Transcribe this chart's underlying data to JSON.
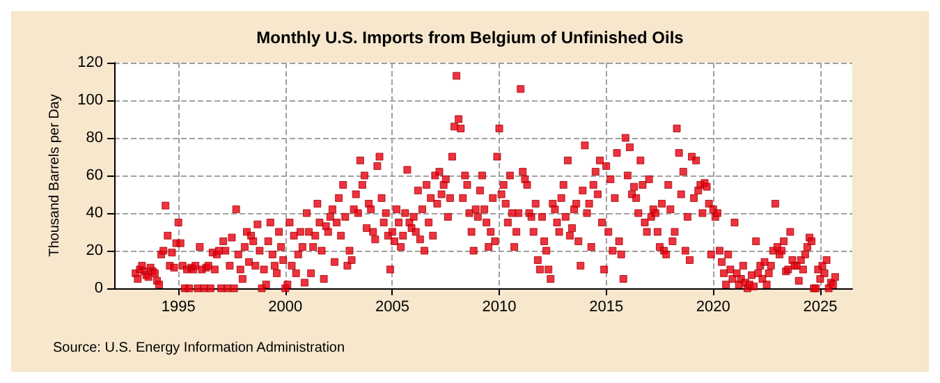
{
  "chart_data": {
    "type": "scatter",
    "title": "Monthly U.S. Imports from Belgium of Unfinished Oils",
    "ylabel": "Thousand Barrels per Day",
    "annotations": [
      "Source: U.S. Energy Information Administration"
    ],
    "x": [
      1993.0,
      1993.1,
      1993.2,
      1993.3,
      1993.4,
      1993.5,
      1993.6,
      1993.7,
      1993.8,
      1993.9,
      1994.0,
      1994.1,
      1994.2,
      1994.3,
      1994.4,
      1994.5,
      1994.6,
      1994.7,
      1994.8,
      1994.9,
      1995.0,
      1995.1,
      1995.2,
      1995.3,
      1995.4,
      1995.5,
      1995.6,
      1995.7,
      1995.8,
      1995.9,
      1996.0,
      1996.1,
      1996.2,
      1996.3,
      1996.4,
      1996.5,
      1996.6,
      1996.7,
      1996.8,
      1996.9,
      1997.0,
      1997.1,
      1997.2,
      1997.3,
      1997.4,
      1997.5,
      1997.6,
      1997.7,
      1997.8,
      1997.9,
      1998.0,
      1998.1,
      1998.2,
      1998.3,
      1998.4,
      1998.5,
      1998.6,
      1998.7,
      1998.8,
      1998.9,
      1999.0,
      1999.1,
      1999.2,
      1999.3,
      1999.4,
      1999.5,
      1999.6,
      1999.7,
      1999.8,
      1999.9,
      2000.0,
      2000.1,
      2000.2,
      2000.3,
      2000.4,
      2000.5,
      2000.6,
      2000.7,
      2000.8,
      2000.9,
      2001.0,
      2001.1,
      2001.2,
      2001.3,
      2001.4,
      2001.5,
      2001.6,
      2001.7,
      2001.8,
      2001.9,
      2002.0,
      2002.1,
      2002.2,
      2002.3,
      2002.4,
      2002.5,
      2002.6,
      2002.7,
      2002.8,
      2002.9,
      2003.0,
      2003.1,
      2003.2,
      2003.3,
      2003.4,
      2003.5,
      2003.6,
      2003.7,
      2003.8,
      2003.9,
      2004.0,
      2004.1,
      2004.2,
      2004.3,
      2004.4,
      2004.5,
      2004.6,
      2004.7,
      2004.8,
      2004.9,
      2005.0,
      2005.1,
      2005.2,
      2005.3,
      2005.4,
      2005.5,
      2005.6,
      2005.7,
      2005.8,
      2005.9,
      2006.0,
      2006.1,
      2006.2,
      2006.3,
      2006.4,
      2006.5,
      2006.6,
      2006.7,
      2006.8,
      2006.9,
      2007.0,
      2007.1,
      2007.2,
      2007.3,
      2007.4,
      2007.5,
      2007.6,
      2007.7,
      2007.8,
      2007.9,
      2008.0,
      2008.1,
      2008.2,
      2008.3,
      2008.4,
      2008.5,
      2008.6,
      2008.7,
      2008.8,
      2008.9,
      2009.0,
      2009.1,
      2009.2,
      2009.3,
      2009.4,
      2009.5,
      2009.6,
      2009.7,
      2009.8,
      2009.9,
      2010.0,
      2010.1,
      2010.2,
      2010.3,
      2010.4,
      2010.5,
      2010.6,
      2010.7,
      2010.8,
      2010.9,
      2011.0,
      2011.1,
      2011.2,
      2011.3,
      2011.4,
      2011.5,
      2011.6,
      2011.7,
      2011.8,
      2011.9,
      2012.0,
      2012.1,
      2012.2,
      2012.3,
      2012.4,
      2012.5,
      2012.6,
      2012.7,
      2012.8,
      2012.9,
      2013.0,
      2013.1,
      2013.2,
      2013.3,
      2013.4,
      2013.5,
      2013.6,
      2013.7,
      2013.8,
      2013.9,
      2014.0,
      2014.1,
      2014.2,
      2014.3,
      2014.4,
      2014.5,
      2014.6,
      2014.7,
      2014.8,
      2014.9,
      2015.0,
      2015.1,
      2015.2,
      2015.3,
      2015.4,
      2015.5,
      2015.6,
      2015.7,
      2015.8,
      2015.9,
      2016.0,
      2016.1,
      2016.2,
      2016.3,
      2016.4,
      2016.5,
      2016.6,
      2016.7,
      2016.8,
      2016.9,
      2017.0,
      2017.1,
      2017.2,
      2017.3,
      2017.4,
      2017.5,
      2017.6,
      2017.7,
      2017.8,
      2017.9,
      2018.0,
      2018.1,
      2018.2,
      2018.3,
      2018.4,
      2018.5,
      2018.6,
      2018.7,
      2018.8,
      2018.9,
      2019.0,
      2019.1,
      2019.2,
      2019.3,
      2019.4,
      2019.5,
      2019.6,
      2019.7,
      2019.8,
      2019.9,
      2020.0,
      2020.1,
      2020.2,
      2020.3,
      2020.4,
      2020.5,
      2020.6,
      2020.7,
      2020.8,
      2020.9,
      2021.0,
      2021.1,
      2021.2,
      2021.3,
      2021.4,
      2021.5,
      2021.6,
      2021.7,
      2021.8,
      2021.9,
      2022.0,
      2022.1,
      2022.2,
      2022.3,
      2022.4,
      2022.5,
      2022.6,
      2022.7,
      2022.8,
      2022.9,
      2023.0,
      2023.1,
      2023.2,
      2023.3,
      2023.4,
      2023.5,
      2023.6,
      2023.7,
      2023.8,
      2023.9,
      2024.0,
      2024.1,
      2024.2,
      2024.3,
      2024.4,
      2024.5,
      2024.6,
      2024.7,
      2024.8,
      2024.9,
      2025.0,
      2025.1,
      2025.2,
      2025.3,
      2025.4,
      2025.5,
      2025.6,
      2025.7
    ],
    "values": [
      8,
      5,
      10,
      12,
      9,
      7,
      6,
      11,
      9,
      8,
      4,
      2,
      18,
      20,
      44,
      28,
      12,
      19,
      11,
      24,
      35,
      24,
      12,
      0,
      10,
      0,
      11,
      10,
      12,
      0,
      22,
      10,
      0,
      11,
      12,
      0,
      19,
      10,
      18,
      20,
      0,
      25,
      20,
      0,
      12,
      27,
      0,
      42,
      18,
      10,
      5,
      22,
      30,
      14,
      28,
      25,
      12,
      34,
      20,
      0,
      10,
      2,
      25,
      35,
      18,
      12,
      8,
      30,
      22,
      15,
      0,
      2,
      35,
      12,
      28,
      8,
      18,
      30,
      22,
      3,
      40,
      30,
      8,
      22,
      28,
      45,
      35,
      20,
      5,
      33,
      30,
      38,
      42,
      14,
      35,
      48,
      28,
      55,
      38,
      12,
      20,
      15,
      42,
      50,
      40,
      68,
      55,
      60,
      32,
      45,
      42,
      30,
      26,
      65,
      70,
      48,
      35,
      40,
      28,
      10,
      30,
      25,
      42,
      35,
      22,
      28,
      40,
      63,
      35,
      32,
      38,
      30,
      52,
      26,
      42,
      20,
      55,
      35,
      48,
      28,
      60,
      45,
      62,
      50,
      55,
      58,
      38,
      48,
      70,
      86,
      113,
      90,
      85,
      48,
      60,
      55,
      40,
      30,
      20,
      42,
      38,
      52,
      60,
      42,
      35,
      22,
      30,
      48,
      25,
      70,
      85,
      50,
      55,
      45,
      35,
      60,
      40,
      22,
      30,
      40,
      106,
      62,
      58,
      55,
      40,
      38,
      30,
      45,
      15,
      10,
      38,
      25,
      20,
      10,
      5,
      45,
      42,
      35,
      30,
      48,
      55,
      38,
      68,
      28,
      32,
      42,
      45,
      25,
      12,
      52,
      76,
      40,
      45,
      22,
      55,
      62,
      50,
      68,
      35,
      10,
      65,
      30,
      58,
      20,
      48,
      72,
      25,
      18,
      5,
      80,
      60,
      75,
      50,
      54,
      48,
      40,
      68,
      55,
      35,
      30,
      58,
      38,
      42,
      40,
      30,
      22,
      45,
      20,
      18,
      55,
      42,
      25,
      30,
      85,
      72,
      50,
      62,
      20,
      38,
      15,
      70,
      48,
      68,
      52,
      55,
      40,
      56,
      54,
      45,
      18,
      42,
      38,
      40,
      20,
      14,
      8,
      2,
      18,
      10,
      5,
      35,
      8,
      2,
      5,
      12,
      3,
      0,
      2,
      7,
      1,
      25,
      8,
      12,
      5,
      14,
      2,
      8,
      12,
      20,
      45,
      22,
      18,
      20,
      25,
      9,
      10,
      30,
      15,
      12,
      12,
      4,
      15,
      10,
      18,
      22,
      27,
      25,
      0,
      0,
      10,
      5,
      12,
      8,
      15,
      0,
      3,
      2,
      6
    ],
    "color": "#e8000f",
    "marker": "square",
    "grid": true,
    "xlim": [
      1992,
      2026.5
    ],
    "xticks": [
      1995,
      2000,
      2005,
      2010,
      2015,
      2020,
      2025
    ],
    "ylim": [
      0,
      120
    ],
    "yticks": [
      0,
      20,
      40,
      60,
      80,
      100,
      120
    ]
  }
}
